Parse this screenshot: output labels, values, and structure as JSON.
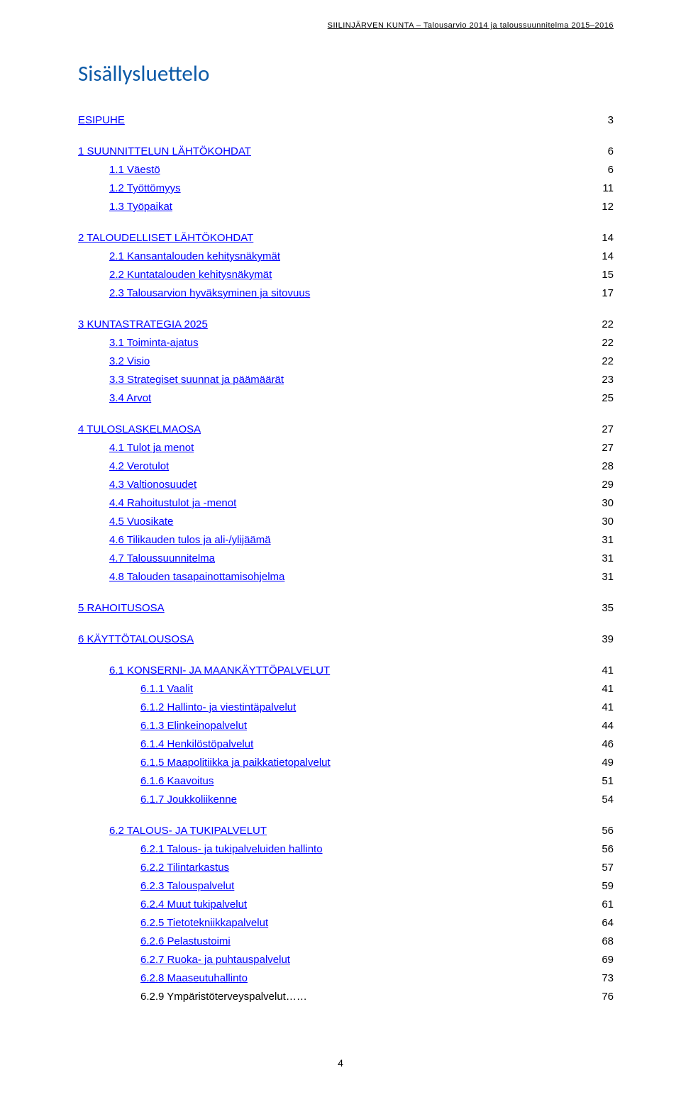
{
  "header": "SIILINJÄRVEN KUNTA – Talousarvio 2014 ja taloussuunnitelma 2015–2016",
  "title": "Sisällysluettelo",
  "page_number": "4",
  "colors": {
    "title": "#0d5aa7",
    "link": "#0000ff",
    "text": "#000000",
    "background": "#ffffff"
  },
  "entries": [
    {
      "indent": 0,
      "label": "ESIPUHE",
      "page": "3",
      "gap": "none",
      "link": true
    },
    {
      "indent": 0,
      "label": "1    SUUNNITTELUN LÄHTÖKOHDAT",
      "page": "6",
      "gap": "section",
      "link": true
    },
    {
      "indent": 1,
      "label": "1.1  Väestö",
      "page": "6",
      "gap": "none",
      "link": true
    },
    {
      "indent": 1,
      "label": "1.2  Työttömyys",
      "page": "11",
      "gap": "none",
      "link": true
    },
    {
      "indent": 1,
      "label": "1.3  Työpaikat",
      "page": "12",
      "gap": "none",
      "link": true
    },
    {
      "indent": 0,
      "label": "2    TALOUDELLISET LÄHTÖKOHDAT",
      "page": "14",
      "gap": "section",
      "link": true
    },
    {
      "indent": 1,
      "label": "2.1  Kansantalouden kehitysnäkymät",
      "page": "14",
      "gap": "none",
      "link": true
    },
    {
      "indent": 1,
      "label": "2.2  Kuntatalouden kehitysnäkymät",
      "page": "15",
      "gap": "none",
      "link": true
    },
    {
      "indent": 1,
      "label": "2.3  Talousarvion hyväksyminen ja sitovuus",
      "page": "17",
      "gap": "none",
      "link": true
    },
    {
      "indent": 0,
      "label": "3    KUNTASTRATEGIA 2025",
      "page": "22",
      "gap": "section",
      "link": true
    },
    {
      "indent": 1,
      "label": "3.1  Toiminta-ajatus",
      "page": "22",
      "gap": "none",
      "link": true
    },
    {
      "indent": 1,
      "label": "3.2  Visio",
      "page": "22",
      "gap": "none",
      "link": true
    },
    {
      "indent": 1,
      "label": "3.3  Strategiset suunnat ja päämäärät",
      "page": "23",
      "gap": "none",
      "link": true
    },
    {
      "indent": 1,
      "label": "3.4  Arvot",
      "page": "25",
      "gap": "none",
      "link": true
    },
    {
      "indent": 0,
      "label": "4    TULOSLASKELMAOSA",
      "page": "27",
      "gap": "section",
      "link": true
    },
    {
      "indent": 1,
      "label": "4.1  Tulot ja menot",
      "page": "27",
      "gap": "none",
      "link": true
    },
    {
      "indent": 1,
      "label": "4.2  Verotulot",
      "page": "28",
      "gap": "none",
      "link": true
    },
    {
      "indent": 1,
      "label": "4.3  Valtionosuudet",
      "page": "29",
      "gap": "none",
      "link": true
    },
    {
      "indent": 1,
      "label": "4.4  Rahoitustulot ja -menot",
      "page": "30",
      "gap": "none",
      "link": true
    },
    {
      "indent": 1,
      "label": "4.5  Vuosikate",
      "page": "30",
      "gap": "none",
      "link": true
    },
    {
      "indent": 1,
      "label": "4.6  Tilikauden tulos ja ali-/ylijäämä",
      "page": "31",
      "gap": "none",
      "link": true
    },
    {
      "indent": 1,
      "label": "4.7  Taloussuunnitelma",
      "page": "31",
      "gap": "none",
      "link": true
    },
    {
      "indent": 1,
      "label": "4.8  Talouden tasapainottamisohjelma",
      "page": "31",
      "gap": "none",
      "link": true
    },
    {
      "indent": 0,
      "label": "5    RAHOITUSOSA",
      "page": "35",
      "gap": "section",
      "link": true
    },
    {
      "indent": 0,
      "label": "6    KÄYTTÖTALOUSOSA",
      "page": "39",
      "gap": "section",
      "link": true
    },
    {
      "indent": 1,
      "label": "6.1    KONSERNI- JA MAANKÄYTTÖPALVELUT",
      "page": "41",
      "gap": "section",
      "link": true
    },
    {
      "indent": 2,
      "label": "6.1.1   Vaalit",
      "page": "41",
      "gap": "none",
      "link": true
    },
    {
      "indent": 2,
      "label": "6.1.2   Hallinto- ja viestintäpalvelut",
      "page": "41",
      "gap": "none",
      "link": true
    },
    {
      "indent": 2,
      "label": "6.1.3   Elinkeinopalvelut",
      "page": "44",
      "gap": "none",
      "link": true
    },
    {
      "indent": 2,
      "label": "6.1.4   Henkilöstöpalvelut",
      "page": "46",
      "gap": "none",
      "link": true
    },
    {
      "indent": 2,
      "label": "6.1.5   Maapolitiikka ja paikkatietopalvelut",
      "page": "49",
      "gap": "none",
      "link": true
    },
    {
      "indent": 2,
      "label": "6.1.6   Kaavoitus",
      "page": "51",
      "gap": "none",
      "link": true
    },
    {
      "indent": 2,
      "label": "6.1.7  Joukkoliikenne",
      "page": "54",
      "gap": "none",
      "link": true
    },
    {
      "indent": 1,
      "label": "6.2    TALOUS- JA TUKIPALVELUT",
      "page": "56",
      "gap": "section",
      "link": true
    },
    {
      "indent": 2,
      "label": "6.2.1   Talous- ja tukipalveluiden hallinto",
      "page": "56",
      "gap": "none",
      "link": true
    },
    {
      "indent": 2,
      "label": "6.2.2   Tilintarkastus",
      "page": "57",
      "gap": "none",
      "link": true
    },
    {
      "indent": 2,
      "label": "6.2.3   Talouspalvelut",
      "page": "59",
      "gap": "none",
      "link": true
    },
    {
      "indent": 2,
      "label": "6.2.4   Muut tukipalvelut",
      "page": "61",
      "gap": "none",
      "link": true
    },
    {
      "indent": 2,
      "label": "6.2.5   Tietotekniikkapalvelut",
      "page": "64",
      "gap": "none",
      "link": true
    },
    {
      "indent": 2,
      "label": "6.2.6   Pelastustoimi",
      "page": "68",
      "gap": "none",
      "link": true
    },
    {
      "indent": 2,
      "label": "6.2.7   Ruoka- ja puhtauspalvelut",
      "page": "69",
      "gap": "none",
      "link": true
    },
    {
      "indent": 2,
      "label": "6.2.8   Maaseutuhallinto",
      "page": "73",
      "gap": "none",
      "link": true
    },
    {
      "indent": 2,
      "label": "6.2.9   Ympäristöterveyspalvelut……",
      "page": "76",
      "gap": "none",
      "link": false
    }
  ]
}
